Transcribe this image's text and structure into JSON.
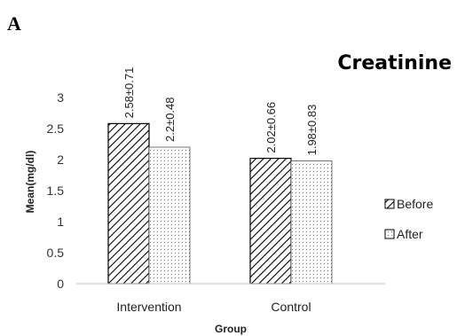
{
  "panel_letter": "A",
  "chart_data": {
    "type": "bar",
    "title": "Creatinine",
    "xlabel": "Group",
    "ylabel": "Mean(mg/dl)",
    "categories": [
      "Intervention",
      "Control"
    ],
    "ylim": [
      0,
      3
    ],
    "yticks": [
      "0",
      "0.5",
      "1",
      "1.5",
      "2",
      "2.5",
      "3"
    ],
    "grid": false,
    "legend_position": "right",
    "series": [
      {
        "name": "Before",
        "pattern": "diagonal-hatch",
        "values": [
          2.58,
          2.02
        ],
        "labels": [
          "2.58±0.71",
          "2.02±0.66"
        ]
      },
      {
        "name": "After",
        "pattern": "dotted",
        "values": [
          2.2,
          1.98
        ],
        "labels": [
          "2.2±0.48",
          "1.98±0.83"
        ]
      }
    ]
  }
}
